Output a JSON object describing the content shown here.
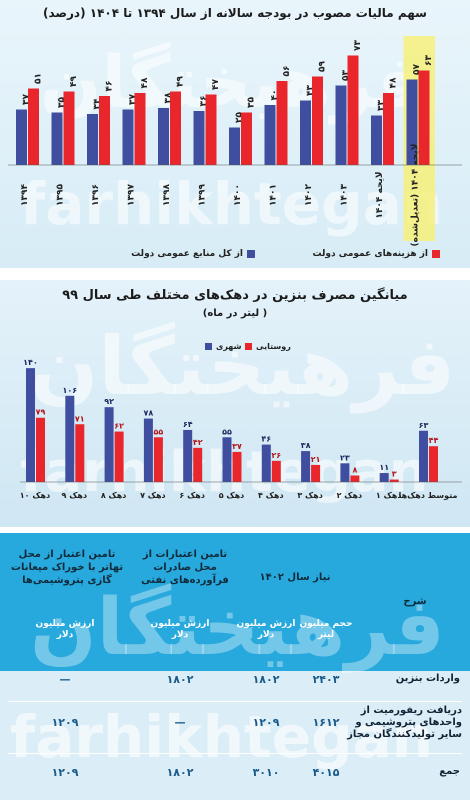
{
  "chart_data": [
    {
      "type": "bar",
      "title": "سهم مالیات مصوب در بودجه سالانه از سال ۱۳۹۴ تا ۱۴۰۴ (درصد)",
      "categories": [
        "۱۳۹۴",
        "۱۳۹۵",
        "۱۳۹۶",
        "۱۳۹۷",
        "۱۳۹۸",
        "۱۳۹۹",
        "۱۴۰۰",
        "۱۴۰۱",
        "۱۴۰۲",
        "۱۴۰۳",
        "لایحه ۱۴۰۴",
        "لایحه ۱۴۰۴ (تعدیل‌شده)"
      ],
      "series": [
        {
          "name": "از کل منابع عمومی دولت",
          "values": [
            37,
            35,
            34,
            37,
            38,
            36,
            25,
            40,
            43,
            53,
            33,
            57
          ],
          "labels": [
            "۳۷",
            "۳۵",
            "۳۴",
            "۳۷",
            "۳۸",
            "۳۶",
            "۲۵",
            "۴۰",
            "۴۳",
            "۵۳",
            "۳۳",
            "۵۷"
          ]
        },
        {
          "name": "از هزینه‌های عمومی دولت",
          "values": [
            51,
            49,
            46,
            48,
            49,
            47,
            35,
            56,
            59,
            73,
            48,
            63
          ],
          "labels": [
            "۵۱",
            "۴۹",
            "۴۶",
            "۴۸",
            "۴۹",
            "۴۷",
            "۳۵",
            "۵۶",
            "۵۹",
            "۷۳",
            "۴۸",
            "۶۳"
          ]
        }
      ],
      "ylim": [
        0,
        80
      ],
      "colors": {
        "series1": "#3f4e9f",
        "series2": "#e8262b",
        "highlight": "#f6f07a"
      },
      "legend": "bottom"
    },
    {
      "type": "bar",
      "title": "میانگین مصرف بنزین در دهک‌های مختلف طی سال ۹۹",
      "subtitle": "( لیتر در ماه)",
      "categories": [
        "دهک ۱۰",
        "دهک ۹",
        "دهک ۸",
        "دهک ۷",
        "دهک ۶",
        "دهک ۵",
        "دهک ۴",
        "دهک ۳",
        "دهک ۲",
        "دهک ۱",
        "متوسط دهک‌ها"
      ],
      "series": [
        {
          "name": "شهری",
          "values": [
            140,
            106,
            92,
            78,
            64,
            55,
            46,
            38,
            23,
            11,
            63
          ],
          "labels": [
            "۱۴۰",
            "۱۰۶",
            "۹۲",
            "۷۸",
            "۶۴",
            "۵۵",
            "۴۶",
            "۳۸",
            "۲۳",
            "۱۱",
            "۶۳"
          ]
        },
        {
          "name": "روستایی",
          "values": [
            79,
            71,
            62,
            55,
            42,
            37,
            26,
            21,
            8,
            3,
            44
          ],
          "labels": [
            "۷۹",
            "۷۱",
            "۶۲",
            "۵۵",
            "۴۲",
            "۳۷",
            "۲۶",
            "۲۱",
            "۸",
            "۳",
            "۴۴"
          ]
        }
      ],
      "ylim": [
        0,
        150
      ],
      "colors": {
        "series1": "#3f4e9f",
        "series2": "#e8262b"
      },
      "legend": "top-left"
    },
    {
      "type": "table",
      "headers": {
        "sharh": "شرح",
        "need": "نیاز سال ۱۴۰۲",
        "export": "تامین اعتبارات از محل صادرات فرآورده‌های نفتی",
        "petro": "تامین اعتبار از محل تهاتر با خوراک میعانات گازی پتروشیمی‌ها"
      },
      "subheaders": {
        "volume": "حجم میلیون لیتر",
        "value1": "ارزش میلیون دلار",
        "value2": "ارزش میلیون دلار",
        "value3": "ارزش میلیون دلار"
      },
      "rows": [
        {
          "label": "واردات بنزین",
          "volume": "۲۴۰۳",
          "need_value": "۱۸۰۲",
          "export": "۱۸۰۲",
          "petro": "—"
        },
        {
          "label": "دریافت ریفورمیت از واحدهای پتروشیمی و سایر تولیدکنندگان مجاز",
          "volume": "۱۶۱۲",
          "need_value": "۱۲۰۹",
          "export": "—",
          "petro": "۱۲۰۹"
        },
        {
          "label": "جمع",
          "volume": "۴۰۱۵",
          "need_value": "۳۰۱۰",
          "export": "۱۸۰۲",
          "petro": "۱۲۰۹"
        }
      ]
    }
  ],
  "watermark": {
    "text_fa": "فرهیختگان",
    "text_en": "farhikhtegan"
  }
}
